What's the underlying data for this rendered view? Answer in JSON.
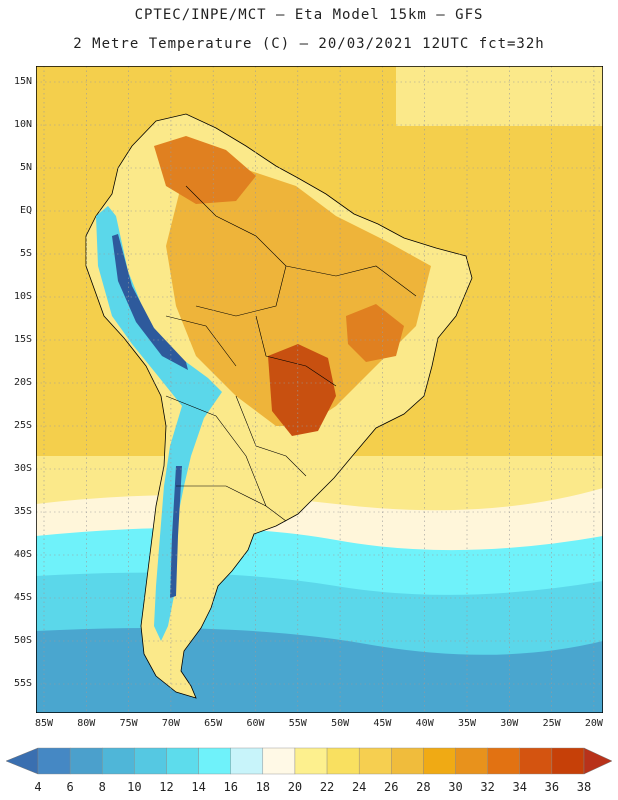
{
  "title_line1": "CPTEC/INPE/MCT –  Eta Model 15km – GFS",
  "title_line2": "2 Metre Temperature (C) – 20/03/2021 12UTC fct=32h",
  "lat_labels": [
    "15N",
    "10N",
    "5N",
    "EQ",
    "5S",
    "10S",
    "15S",
    "20S",
    "25S",
    "30S",
    "35S",
    "40S",
    "45S",
    "50S",
    "55S"
  ],
  "lon_labels": [
    "85W",
    "80W",
    "75W",
    "70W",
    "65W",
    "60W",
    "55W",
    "50W",
    "45W",
    "40W",
    "35W",
    "30W",
    "25W",
    "20W"
  ],
  "colorbar": {
    "levels": [
      "4",
      "6",
      "8",
      "10",
      "12",
      "14",
      "16",
      "18",
      "20",
      "22",
      "24",
      "26",
      "28",
      "30",
      "32",
      "34",
      "36",
      "38"
    ],
    "colors": [
      "#3a6fb0",
      "#4588c4",
      "#4ba0cc",
      "#4fb6d8",
      "#55c8e2",
      "#5ddcec",
      "#6ff2fa",
      "#c8f4fa",
      "#fff9e6",
      "#fdf08e",
      "#f9e060",
      "#f6cf50",
      "#f0bc3c",
      "#f0aa14",
      "#e8921c",
      "#e27212",
      "#d45410",
      "#c64008",
      "#b8321a"
    ]
  },
  "map_palette": {
    "cold_deep": "#2e5a9c",
    "cold_mid": "#4aa6cf",
    "cold_light": "#5bd7ea",
    "cyan": "#6ff2fa",
    "pale": "#fff6da",
    "warm_light": "#fbe98a",
    "warm": "#f4cf4c",
    "warm_orange": "#eeb43a",
    "hot": "#e08020",
    "hottest": "#c85010",
    "grid": "#9a9a9a",
    "border": "#000000"
  }
}
